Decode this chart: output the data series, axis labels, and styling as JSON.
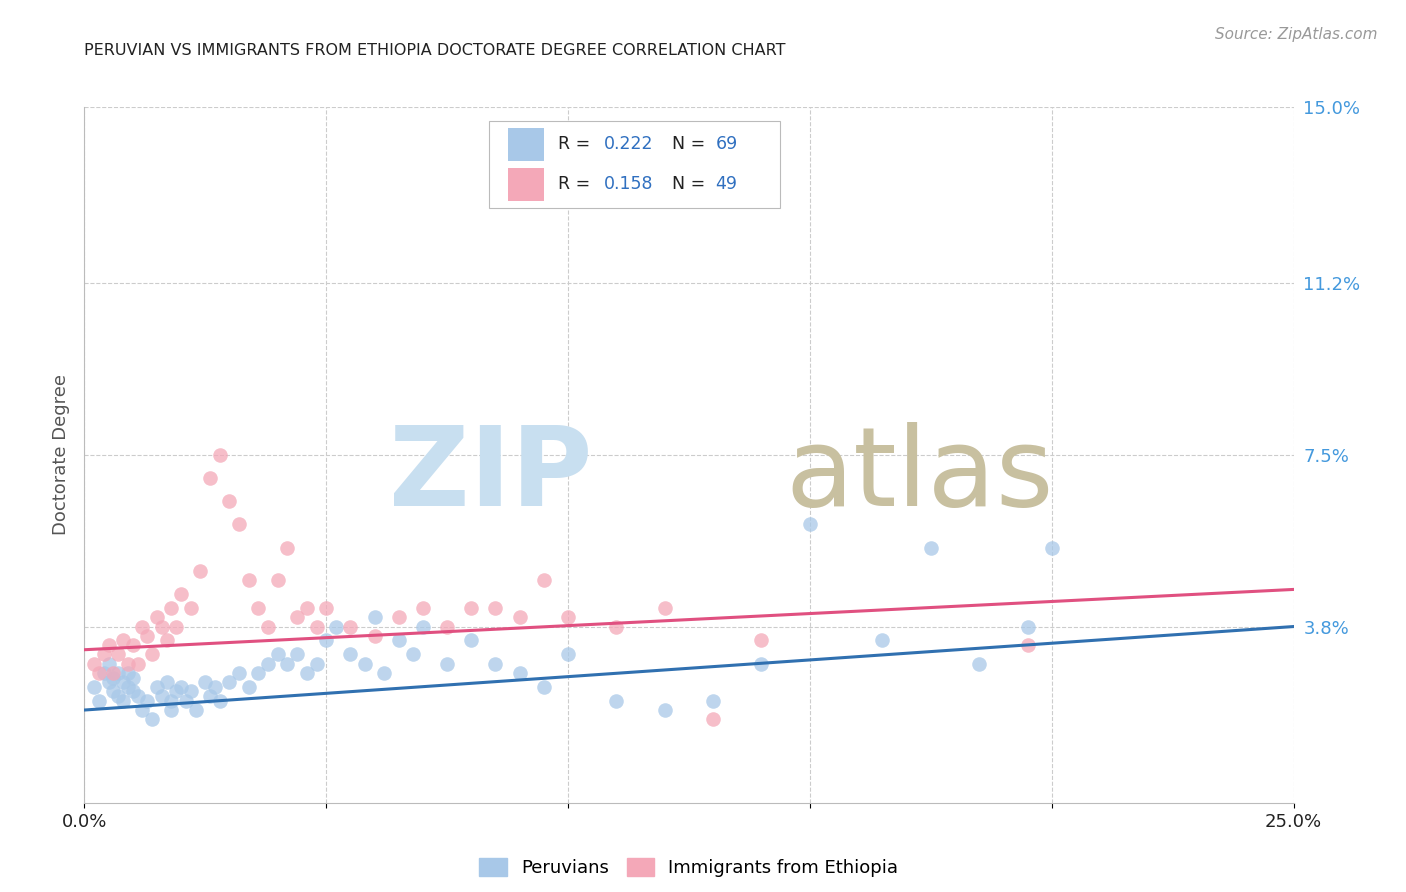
{
  "title": "PERUVIAN VS IMMIGRANTS FROM ETHIOPIA DOCTORATE DEGREE CORRELATION CHART",
  "source": "Source: ZipAtlas.com",
  "ylabel": "Doctorate Degree",
  "xlim": [
    0.0,
    0.25
  ],
  "ylim": [
    0.0,
    0.15
  ],
  "xticks": [
    0.0,
    0.05,
    0.1,
    0.15,
    0.2,
    0.25
  ],
  "xticklabels_show": [
    "0.0%",
    "25.0%"
  ],
  "xticklabels_pos": [
    0.0,
    0.25
  ],
  "ytick_positions": [
    0.038,
    0.075,
    0.112,
    0.15
  ],
  "ytick_labels": [
    "3.8%",
    "7.5%",
    "11.2%",
    "15.0%"
  ],
  "color_blue": "#a8c8e8",
  "color_pink": "#f4a8b8",
  "color_blue_line": "#3070b0",
  "color_pink_line": "#e05080",
  "color_blue_legend_box": "#a8c8e8",
  "color_pink_legend_box": "#f4a8b8",
  "color_legend_text_black": "#222222",
  "color_legend_text_blue": "#3070c0",
  "watermark_zip_color": "#c8dff0",
  "watermark_atlas_color": "#c8c0a0",
  "peruvians_x": [
    0.002,
    0.003,
    0.004,
    0.005,
    0.005,
    0.006,
    0.006,
    0.007,
    0.007,
    0.008,
    0.008,
    0.009,
    0.009,
    0.01,
    0.01,
    0.011,
    0.012,
    0.013,
    0.014,
    0.015,
    0.016,
    0.017,
    0.018,
    0.018,
    0.019,
    0.02,
    0.021,
    0.022,
    0.023,
    0.025,
    0.026,
    0.027,
    0.028,
    0.03,
    0.032,
    0.034,
    0.036,
    0.038,
    0.04,
    0.042,
    0.044,
    0.046,
    0.048,
    0.05,
    0.052,
    0.055,
    0.058,
    0.06,
    0.062,
    0.065,
    0.068,
    0.07,
    0.075,
    0.08,
    0.085,
    0.09,
    0.095,
    0.1,
    0.11,
    0.12,
    0.13,
    0.14,
    0.15,
    0.165,
    0.175,
    0.185,
    0.195,
    0.2,
    0.13
  ],
  "peruvians_y": [
    0.025,
    0.022,
    0.028,
    0.026,
    0.03,
    0.024,
    0.027,
    0.023,
    0.028,
    0.022,
    0.026,
    0.025,
    0.028,
    0.024,
    0.027,
    0.023,
    0.02,
    0.022,
    0.018,
    0.025,
    0.023,
    0.026,
    0.022,
    0.02,
    0.024,
    0.025,
    0.022,
    0.024,
    0.02,
    0.026,
    0.023,
    0.025,
    0.022,
    0.026,
    0.028,
    0.025,
    0.028,
    0.03,
    0.032,
    0.03,
    0.032,
    0.028,
    0.03,
    0.035,
    0.038,
    0.032,
    0.03,
    0.04,
    0.028,
    0.035,
    0.032,
    0.038,
    0.03,
    0.035,
    0.03,
    0.028,
    0.025,
    0.032,
    0.022,
    0.02,
    0.022,
    0.03,
    0.06,
    0.035,
    0.055,
    0.03,
    0.038,
    0.055,
    0.13
  ],
  "ethiopia_x": [
    0.002,
    0.003,
    0.004,
    0.005,
    0.006,
    0.007,
    0.008,
    0.009,
    0.01,
    0.011,
    0.012,
    0.013,
    0.014,
    0.015,
    0.016,
    0.017,
    0.018,
    0.019,
    0.02,
    0.022,
    0.024,
    0.026,
    0.028,
    0.03,
    0.032,
    0.034,
    0.036,
    0.038,
    0.04,
    0.042,
    0.044,
    0.046,
    0.048,
    0.05,
    0.055,
    0.06,
    0.065,
    0.07,
    0.075,
    0.08,
    0.085,
    0.09,
    0.095,
    0.1,
    0.11,
    0.12,
    0.13,
    0.14,
    0.195
  ],
  "ethiopia_y": [
    0.03,
    0.028,
    0.032,
    0.034,
    0.028,
    0.032,
    0.035,
    0.03,
    0.034,
    0.03,
    0.038,
    0.036,
    0.032,
    0.04,
    0.038,
    0.035,
    0.042,
    0.038,
    0.045,
    0.042,
    0.05,
    0.07,
    0.075,
    0.065,
    0.06,
    0.048,
    0.042,
    0.038,
    0.048,
    0.055,
    0.04,
    0.042,
    0.038,
    0.042,
    0.038,
    0.036,
    0.04,
    0.042,
    0.038,
    0.042,
    0.042,
    0.04,
    0.048,
    0.04,
    0.038,
    0.042,
    0.018,
    0.035,
    0.034
  ],
  "blue_line_x": [
    0.0,
    0.25
  ],
  "blue_line_y": [
    0.02,
    0.038
  ],
  "pink_line_x": [
    0.0,
    0.25
  ],
  "pink_line_y": [
    0.033,
    0.046
  ],
  "background_color": "#ffffff",
  "grid_color": "#cccccc",
  "title_color": "#222222",
  "axis_label_color": "#555555",
  "ytick_label_color": "#4499dd",
  "xtick_label_color": "#222222"
}
